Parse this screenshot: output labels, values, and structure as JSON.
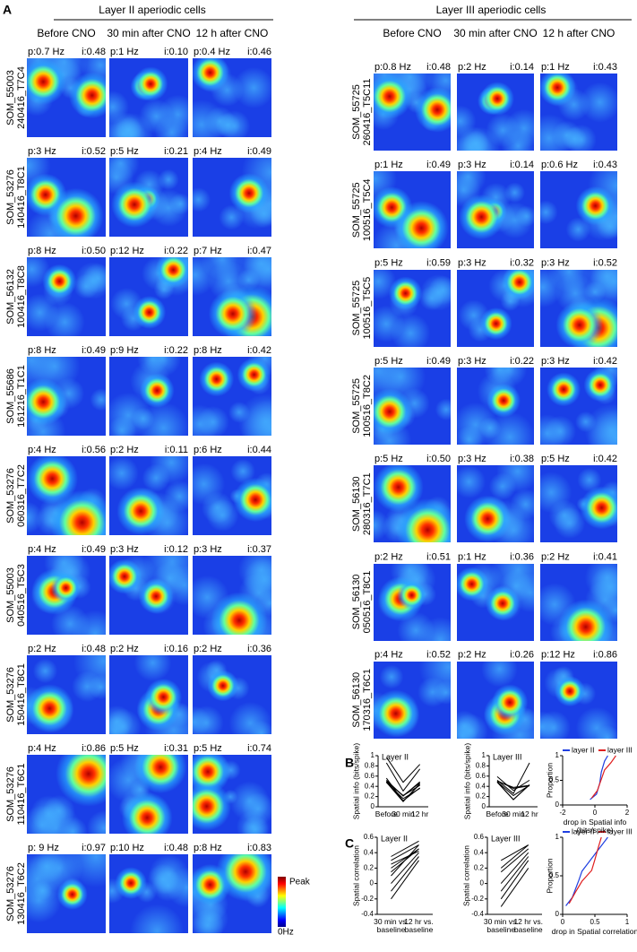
{
  "panel_label_a": "A",
  "panel_label_b": "B",
  "panel_label_c": "C",
  "layer2": {
    "title": "Layer II aperiodic cells",
    "columns": [
      "Before CNO",
      "30 min after CNO",
      "12 h after CNO"
    ],
    "cells": [
      {
        "mouse": "SOM_55003",
        "session": "240416_T7C4",
        "maps": [
          {
            "peak": "p:0.7 Hz",
            "info": "i:0.48"
          },
          {
            "peak": "p:1 Hz",
            "info": "i:0.10"
          },
          {
            "peak": "p:0.4 Hz",
            "info": "i:0.46"
          }
        ]
      },
      {
        "mouse": "SOM_53276",
        "session": "140416_T8C1",
        "maps": [
          {
            "peak": "p:3 Hz",
            "info": "i:0.52"
          },
          {
            "peak": "p:5 Hz",
            "info": "i:0.21"
          },
          {
            "peak": "p:4 Hz",
            "info": "i:0.49"
          }
        ]
      },
      {
        "mouse": "SOM_56132",
        "session": "100416_T8C8",
        "maps": [
          {
            "peak": "p:8 Hz",
            "info": "i:0.50"
          },
          {
            "peak": "p:12 Hz",
            "info": "i:0.22"
          },
          {
            "peak": "p:7 Hz",
            "info": "i:0.47"
          }
        ]
      },
      {
        "mouse": "SOM_55686",
        "session": "161216_T1C1",
        "maps": [
          {
            "peak": "p:8 Hz",
            "info": "i:0.49"
          },
          {
            "peak": "p:9 Hz",
            "info": "i:0.22"
          },
          {
            "peak": "p:8 Hz",
            "info": "i:0.42"
          }
        ]
      },
      {
        "mouse": "SOM_53276",
        "session": "060316_T7C2",
        "maps": [
          {
            "peak": "p:4 Hz",
            "info": "i:0.56"
          },
          {
            "peak": "p:2 Hz",
            "info": "i:0.11"
          },
          {
            "peak": "p:6 Hz",
            "info": "i:0.44"
          }
        ]
      },
      {
        "mouse": "SOM_55003",
        "session": "040516_T5C3",
        "maps": [
          {
            "peak": "p:4 Hz",
            "info": "i:0.49"
          },
          {
            "peak": "p:3 Hz",
            "info": "i:0.12"
          },
          {
            "peak": "p:3 Hz",
            "info": "i:0.37"
          }
        ]
      },
      {
        "mouse": "SOM_53276",
        "session": "150416_T8C1",
        "maps": [
          {
            "peak": "p:2 Hz",
            "info": "i:0.48"
          },
          {
            "peak": "p:2 Hz",
            "info": "i:0.16"
          },
          {
            "peak": "p:2 Hz",
            "info": "i:0.36"
          }
        ]
      },
      {
        "mouse": "SOM_53276",
        "session": "110416_T6C1",
        "maps": [
          {
            "peak": "p:4 Hz",
            "info": "i:0.86"
          },
          {
            "peak": "p:5 Hz",
            "info": "i:0.31"
          },
          {
            "peak": "p:5 Hz",
            "info": "i:0.74"
          }
        ]
      },
      {
        "mouse": "SOM_53276",
        "session": "130416_T6C2",
        "maps": [
          {
            "peak": "p: 9 Hz",
            "info": "i:0.97"
          },
          {
            "peak": "p:10 Hz",
            "info": "i:0.48"
          },
          {
            "peak": "p:8 Hz",
            "info": "i:0.83"
          }
        ]
      }
    ]
  },
  "layer3": {
    "title": "Layer III aperiodic cells",
    "columns": [
      "Before CNO",
      "30 min after CNO",
      "12 h after CNO"
    ],
    "cells": [
      {
        "mouse": "SOM_55725",
        "session": "260416_T5C11",
        "maps": [
          {
            "peak": "p:0.8 Hz",
            "info": "i:0.48"
          },
          {
            "peak": "p:2 Hz",
            "info": "i:0.14"
          },
          {
            "peak": "p:1 Hz",
            "info": "i:0.43"
          }
        ]
      },
      {
        "mouse": "SOM_55725",
        "session": "100516_T5C4",
        "maps": [
          {
            "peak": "p:1 Hz",
            "info": "i:0.49"
          },
          {
            "peak": "p:3 Hz",
            "info": "i:0.14"
          },
          {
            "peak": "p:0.6 Hz",
            "info": "i:0.43"
          }
        ]
      },
      {
        "mouse": "SOM_55725",
        "session": "100516_T5C5",
        "maps": [
          {
            "peak": "p:5 Hz",
            "info": "i:0.59"
          },
          {
            "peak": "p:3 Hz",
            "info": "i:0.32"
          },
          {
            "peak": "p:3 Hz",
            "info": "i:0.52"
          }
        ]
      },
      {
        "mouse": "SOM_55725",
        "session": "100516_T8C2",
        "maps": [
          {
            "peak": "p:5 Hz",
            "info": "i:0.49"
          },
          {
            "peak": "p:3 Hz",
            "info": "i:0.22"
          },
          {
            "peak": "p:3 Hz",
            "info": "i:0.42"
          }
        ]
      },
      {
        "mouse": "SOM_56130",
        "session": "280316_T7C1",
        "maps": [
          {
            "peak": "p:5 Hz",
            "info": "i:0.50"
          },
          {
            "peak": "p:3 Hz",
            "info": "i:0.38"
          },
          {
            "peak": "p:5 Hz",
            "info": "i:0.42"
          }
        ]
      },
      {
        "mouse": "SOM_56130",
        "session": "050516_T8C1",
        "maps": [
          {
            "peak": "p:2 Hz",
            "info": "i:0.51"
          },
          {
            "peak": "p:1 Hz",
            "info": "i:0.36"
          },
          {
            "peak": "p:2 Hz",
            "info": "i:0.41"
          }
        ]
      },
      {
        "mouse": "SOM_56130",
        "session": "170316_T6C1",
        "maps": [
          {
            "peak": "p:4 Hz",
            "info": "i:0.52"
          },
          {
            "peak": "p:2 Hz",
            "info": "i:0.26"
          },
          {
            "peak": "p:12 Hz",
            "info": "i:0.86"
          }
        ]
      }
    ]
  },
  "colorbar": {
    "top": "Peak",
    "bottom": "0Hz"
  },
  "chart_data": [
    {
      "type": "line",
      "title": "Layer II",
      "categories": [
        "Before",
        "30 min",
        "12 hr"
      ],
      "ylabel": "Spatial info (bits/spike)",
      "ylim": [
        0,
        1
      ],
      "yticks": [
        0,
        0.2,
        0.4,
        0.6,
        0.8,
        1
      ],
      "series": [
        {
          "color": "#000000",
          "values": [
            0.48,
            0.1,
            0.46
          ]
        },
        {
          "color": "#000000",
          "values": [
            0.52,
            0.21,
            0.49
          ]
        },
        {
          "color": "#000000",
          "values": [
            0.5,
            0.22,
            0.47
          ]
        },
        {
          "color": "#000000",
          "values": [
            0.49,
            0.22,
            0.42
          ]
        },
        {
          "color": "#000000",
          "values": [
            0.56,
            0.11,
            0.44
          ]
        },
        {
          "color": "#000000",
          "values": [
            0.49,
            0.12,
            0.37
          ]
        },
        {
          "color": "#000000",
          "values": [
            0.48,
            0.16,
            0.36
          ]
        },
        {
          "color": "#000000",
          "values": [
            0.86,
            0.31,
            0.74
          ]
        },
        {
          "color": "#000000",
          "values": [
            0.97,
            0.48,
            0.83
          ]
        }
      ]
    },
    {
      "type": "line",
      "title": "Layer III",
      "categories": [
        "Before",
        "30 min",
        "12 hr"
      ],
      "ylabel": "Spatial info (bits/spike)",
      "ylim": [
        0,
        1
      ],
      "yticks": [
        0,
        0.2,
        0.4,
        0.6,
        0.8,
        1
      ],
      "series": [
        {
          "color": "#000000",
          "values": [
            0.48,
            0.14,
            0.43
          ]
        },
        {
          "color": "#000000",
          "values": [
            0.49,
            0.14,
            0.43
          ]
        },
        {
          "color": "#000000",
          "values": [
            0.59,
            0.32,
            0.52
          ]
        },
        {
          "color": "#000000",
          "values": [
            0.49,
            0.22,
            0.42
          ]
        },
        {
          "color": "#000000",
          "values": [
            0.5,
            0.38,
            0.42
          ]
        },
        {
          "color": "#000000",
          "values": [
            0.51,
            0.36,
            0.41
          ]
        },
        {
          "color": "#000000",
          "values": [
            0.52,
            0.26,
            0.86
          ]
        }
      ]
    },
    {
      "type": "cdf",
      "ylabel": "Proportion",
      "xlabel": "drop in Spatial info (bits/spike)",
      "xlim": [
        -2,
        2
      ],
      "xticks": [
        -2,
        0,
        2
      ],
      "ylim": [
        0,
        1
      ],
      "yticks": [
        0,
        0.5,
        1
      ],
      "legend": "upper right",
      "series": [
        {
          "name": "layer II",
          "color": "#1f3fe0",
          "x": [
            -0.3,
            0.1,
            0.2,
            0.3,
            0.35,
            0.4,
            0.5,
            0.6,
            0.8
          ],
          "values": [
            0.11,
            0.22,
            0.33,
            0.44,
            0.56,
            0.67,
            0.78,
            0.89,
            1
          ]
        },
        {
          "name": "layer III",
          "color": "#e02020",
          "x": [
            -0.2,
            0.15,
            0.3,
            0.45,
            0.6,
            1.0,
            1.3
          ],
          "values": [
            0.14,
            0.29,
            0.43,
            0.57,
            0.71,
            0.86,
            1
          ]
        }
      ]
    },
    {
      "type": "line",
      "title": "Layer II",
      "categories": [
        "30 min vs. baseline",
        "12 hr vs. baseline"
      ],
      "ylabel": "Spatial correlation",
      "ylim": [
        -0.4,
        0.6
      ],
      "yticks": [
        -0.4,
        -0.2,
        0,
        0.2,
        0.4,
        0.6
      ],
      "series": [
        {
          "color": "#000000",
          "values": [
            0.3,
            0.5
          ]
        },
        {
          "color": "#000000",
          "values": [
            0.2,
            0.45
          ]
        },
        {
          "color": "#000000",
          "values": [
            0.1,
            0.5
          ]
        },
        {
          "color": "#000000",
          "values": [
            0.35,
            0.55
          ]
        },
        {
          "color": "#000000",
          "values": [
            0.0,
            0.4
          ]
        },
        {
          "color": "#000000",
          "values": [
            -0.1,
            0.35
          ]
        },
        {
          "color": "#000000",
          "values": [
            -0.2,
            0.3
          ]
        },
        {
          "color": "#000000",
          "values": [
            0.15,
            0.45
          ]
        },
        {
          "color": "#000000",
          "values": [
            0.25,
            0.42
          ]
        }
      ]
    },
    {
      "type": "line",
      "title": "Layer III",
      "categories": [
        "30 min vs. baseline",
        "12 hr vs. baseline"
      ],
      "ylabel": "Spatial correlation",
      "ylim": [
        -0.4,
        0.6
      ],
      "yticks": [
        -0.4,
        -0.2,
        0,
        0.2,
        0.4,
        0.6
      ],
      "series": [
        {
          "color": "#000000",
          "values": [
            0.3,
            0.5
          ]
        },
        {
          "color": "#000000",
          "values": [
            0.15,
            0.45
          ]
        },
        {
          "color": "#000000",
          "values": [
            0.0,
            0.4
          ]
        },
        {
          "color": "#000000",
          "values": [
            -0.1,
            0.35
          ]
        },
        {
          "color": "#000000",
          "values": [
            -0.2,
            0.3
          ]
        },
        {
          "color": "#000000",
          "values": [
            -0.3,
            0.2
          ]
        },
        {
          "color": "#000000",
          "values": [
            0.2,
            0.5
          ]
        }
      ]
    },
    {
      "type": "cdf",
      "ylabel": "Proportion",
      "xlabel": "drop in Spatial correlation",
      "xlim": [
        0,
        1
      ],
      "xticks": [
        0,
        0.5,
        1
      ],
      "ylim": [
        0,
        1
      ],
      "yticks": [
        0,
        0.5,
        1
      ],
      "legend": "upper right",
      "series": [
        {
          "name": "layer II",
          "color": "#1f3fe0",
          "x": [
            0.05,
            0.15,
            0.2,
            0.25,
            0.3,
            0.4,
            0.5,
            0.6,
            0.7
          ],
          "values": [
            0.11,
            0.22,
            0.33,
            0.44,
            0.56,
            0.67,
            0.78,
            0.89,
            1
          ]
        },
        {
          "name": "layer III",
          "color": "#e02020",
          "x": [
            0.1,
            0.2,
            0.3,
            0.45,
            0.5,
            0.55,
            0.6
          ],
          "values": [
            0.14,
            0.29,
            0.43,
            0.57,
            0.71,
            0.86,
            1
          ]
        }
      ]
    }
  ]
}
